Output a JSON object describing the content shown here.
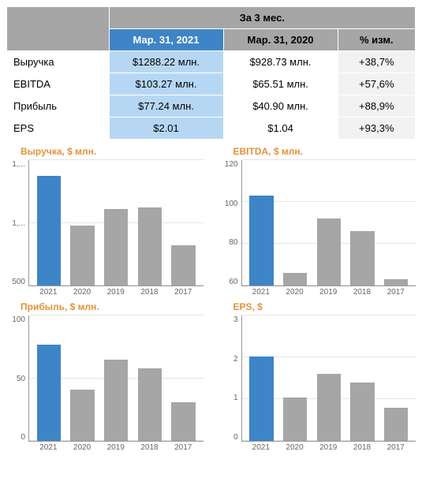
{
  "table": {
    "header_top": "За 3 мес.",
    "columns": [
      "Мар. 31, 2021",
      "Мар. 31, 2020",
      "% изм."
    ],
    "rows": [
      {
        "label": "Выручка",
        "v2021": "$1288.22 млн.",
        "v2020": "$928.73 млн.",
        "pct": "+38,7%"
      },
      {
        "label": "EBITDA",
        "v2021": "$103.27 млн.",
        "v2020": "$65.51 млн.",
        "pct": "+57,6%"
      },
      {
        "label": "Прибыль",
        "v2021": "$77.24 млн.",
        "v2020": "$40.90 млн.",
        "pct": "+88,9%"
      },
      {
        "label": "EPS",
        "v2021": "$2.01",
        "v2020": "$1.04",
        "pct": "+93,3%"
      }
    ],
    "colors": {
      "header_grey": "#a6a6a6",
      "header_blue": "#3d85c6",
      "cell_blue": "#b6d7f4",
      "cell_grey": "#f2f2f2"
    }
  },
  "charts": {
    "title_color": "#e69138",
    "bar_highlight": "#3d85c6",
    "bar_default": "#a6a6a6",
    "gridline_color": "#e5e5e5",
    "axis_color": "#999999",
    "label_fontsize": 10,
    "title_fontsize": 12,
    "list": [
      {
        "title": "Выручка, $ млн.",
        "ymin": 500,
        "ymax": 1400,
        "y_ticks": [
          "1,...",
          "1,...",
          "500"
        ],
        "x_labels": [
          "2021",
          "2020",
          "2019",
          "2018",
          "2017"
        ],
        "values": [
          1288,
          929,
          1050,
          1060,
          790
        ],
        "highlight_index": 0
      },
      {
        "title": "EBITDA, $ млн.",
        "ymin": 60,
        "ymax": 120,
        "y_ticks": [
          "120",
          "100",
          "80",
          "60"
        ],
        "x_labels": [
          "2021",
          "2020",
          "2019",
          "2018",
          "2017"
        ],
        "values": [
          103,
          66,
          92,
          86,
          63
        ],
        "highlight_index": 0
      },
      {
        "title": "Прибыль, $ млн.",
        "ymin": 0,
        "ymax": 100,
        "y_ticks": [
          "100",
          "50",
          "0"
        ],
        "x_labels": [
          "2021",
          "2020",
          "2019",
          "2018",
          "2017"
        ],
        "values": [
          77,
          41,
          65,
          58,
          31
        ],
        "highlight_index": 0
      },
      {
        "title": "EPS, $",
        "ymin": 0,
        "ymax": 3,
        "y_ticks": [
          "3",
          "2",
          "1",
          "0"
        ],
        "x_labels": [
          "2021",
          "2020",
          "2019",
          "2018",
          "2017"
        ],
        "values": [
          2.01,
          1.04,
          1.6,
          1.4,
          0.8
        ],
        "highlight_index": 0
      }
    ]
  }
}
